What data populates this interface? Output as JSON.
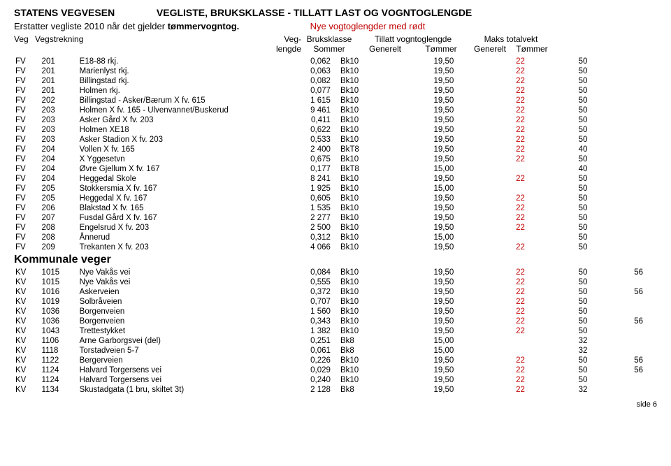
{
  "header": {
    "org": "STATENS VEGVESEN",
    "title": "VEGLISTE,  BRUKSKLASSE - TILLATT LAST OG VOGNTOGLENGDE",
    "replace_prefix": "Erstatter vegliste 2010 når det gjelder ",
    "replace_bold": "tømmervogntog.",
    "new_lengths": "Nye vogtoglengder med rødt"
  },
  "columns": {
    "r1": [
      "Veg",
      "Vegstrekning",
      "Veg-",
      "Bruksklasse",
      "Tillatt vogntoglengde",
      "Maks totalvekt"
    ],
    "r2": [
      "",
      "",
      "lengde",
      "Sommer",
      "Generelt",
      "Tømmer",
      "Generelt",
      "Tømmer"
    ]
  },
  "section": "Kommunale veger",
  "footer": "side 6",
  "rows_top": [
    {
      "veg": "FV",
      "num": "201",
      "name": "E18-88 rkj.",
      "len": "0,062",
      "bk": "Bk10",
      "gen": "19,50",
      "tom": "22",
      "mg": "50",
      "mt": ""
    },
    {
      "veg": "FV",
      "num": "201",
      "name": "Marienlyst rkj.",
      "len": "0,063",
      "bk": "Bk10",
      "gen": "19,50",
      "tom": "22",
      "mg": "50",
      "mt": ""
    },
    {
      "veg": "FV",
      "num": "201",
      "name": "Billingstad rkj.",
      "len": "0,082",
      "bk": "Bk10",
      "gen": "19,50",
      "tom": "22",
      "mg": "50",
      "mt": ""
    },
    {
      "veg": "FV",
      "num": "201",
      "name": "Holmen rkj.",
      "len": "0,077",
      "bk": "Bk10",
      "gen": "19,50",
      "tom": "22",
      "mg": "50",
      "mt": ""
    },
    {
      "veg": "FV",
      "num": "202",
      "name": "Billingstad - Asker/Bærum X fv. 615",
      "len": "1 615",
      "bk": "Bk10",
      "gen": "19,50",
      "tom": "22",
      "mg": "50",
      "mt": ""
    },
    {
      "veg": "FV",
      "num": "203",
      "name": "Holmen X fv. 165 - Ulvenvannet/Buskerud",
      "len": "9 461",
      "bk": "Bk10",
      "gen": "19,50",
      "tom": "22",
      "mg": "50",
      "mt": ""
    },
    {
      "veg": "FV",
      "num": "203",
      "name": "Asker Gård X fv. 203",
      "len": "0,411",
      "bk": "Bk10",
      "gen": "19,50",
      "tom": "22",
      "mg": "50",
      "mt": ""
    },
    {
      "veg": "FV",
      "num": "203",
      "name": "Holmen XE18",
      "len": "0,622",
      "bk": "Bk10",
      "gen": "19,50",
      "tom": "22",
      "mg": "50",
      "mt": ""
    },
    {
      "veg": "FV",
      "num": "203",
      "name": "Asker Stadion X fv. 203",
      "len": "0,533",
      "bk": "Bk10",
      "gen": "19,50",
      "tom": "22",
      "mg": "50",
      "mt": ""
    },
    {
      "veg": "FV",
      "num": "204",
      "name": "Vollen X fv. 165",
      "len": "2 400",
      "bk": "BkT8",
      "gen": "19,50",
      "tom": "22",
      "mg": "40",
      "mt": ""
    },
    {
      "veg": "FV",
      "num": "204",
      "name": "X Yggesetvn",
      "len": "0,675",
      "bk": "Bk10",
      "gen": "19,50",
      "tom": "22",
      "mg": "50",
      "mt": ""
    },
    {
      "veg": "FV",
      "num": "204",
      "name": "Øvre Gjellum  X fv. 167",
      "len": "0,177",
      "bk": "BkT8",
      "gen": "15,00",
      "tom": "",
      "mg": "40",
      "mt": ""
    },
    {
      "veg": "FV",
      "num": "204",
      "name": "Heggedal Skole",
      "len": "8 241",
      "bk": "Bk10",
      "gen": "19,50",
      "tom": "22",
      "mg": "50",
      "mt": ""
    },
    {
      "veg": "FV",
      "num": "205",
      "name": "Stokkersmia X fv. 167",
      "len": "1 925",
      "bk": "Bk10",
      "gen": "15,00",
      "tom": "",
      "mg": "50",
      "mt": ""
    },
    {
      "veg": "FV",
      "num": "205",
      "name": "Heggedal X fv. 167",
      "len": "0,605",
      "bk": "Bk10",
      "gen": "19,50",
      "tom": "22",
      "mg": "50",
      "mt": ""
    },
    {
      "veg": "FV",
      "num": "206",
      "name": "Blakstad X fv. 165",
      "len": "1 535",
      "bk": "Bk10",
      "gen": "19,50",
      "tom": "22",
      "mg": "50",
      "mt": ""
    },
    {
      "veg": "FV",
      "num": "207",
      "name": "Fusdal Gård X fv. 167",
      "len": "2 277",
      "bk": "Bk10",
      "gen": "19,50",
      "tom": "22",
      "mg": "50",
      "mt": ""
    },
    {
      "veg": "FV",
      "num": "208",
      "name": "Engelsrud X fv. 203",
      "len": "2 500",
      "bk": "Bk10",
      "gen": "19,50",
      "tom": "22",
      "mg": "50",
      "mt": ""
    },
    {
      "veg": "FV",
      "num": "208",
      "name": "Ånnerud",
      "len": "0,312",
      "bk": "Bk10",
      "gen": "15,00",
      "tom": "",
      "mg": "50",
      "mt": ""
    },
    {
      "veg": "FV",
      "num": "209",
      "name": "Trekanten X fv. 203",
      "len": "4 066",
      "bk": "Bk10",
      "gen": "19,50",
      "tom": "22",
      "mg": "50",
      "mt": ""
    }
  ],
  "rows_bottom": [
    {
      "veg": "KV",
      "num": "1015",
      "name": "Nye Vakås vei",
      "len": "0,084",
      "bk": "Bk10",
      "gen": "19,50",
      "tom": "22",
      "mg": "50",
      "mt": "56"
    },
    {
      "veg": "KV",
      "num": "1015",
      "name": "Nye Vakås vei",
      "len": "0,555",
      "bk": "Bk10",
      "gen": "19,50",
      "tom": "22",
      "mg": "50",
      "mt": ""
    },
    {
      "veg": "KV",
      "num": "1016",
      "name": "Askerveien",
      "len": "0,372",
      "bk": "Bk10",
      "gen": "19,50",
      "tom": "22",
      "mg": "50",
      "mt": "56"
    },
    {
      "veg": "KV",
      "num": "1019",
      "name": "Solbråveien",
      "len": "0,707",
      "bk": "Bk10",
      "gen": "19,50",
      "tom": "22",
      "mg": "50",
      "mt": ""
    },
    {
      "veg": "KV",
      "num": "1036",
      "name": "Borgenveien",
      "len": "1 560",
      "bk": "Bk10",
      "gen": "19,50",
      "tom": "22",
      "mg": "50",
      "mt": ""
    },
    {
      "veg": "KV",
      "num": "1036",
      "name": "Borgenveien",
      "len": "0,343",
      "bk": "Bk10",
      "gen": "19,50",
      "tom": "22",
      "mg": "50",
      "mt": "56"
    },
    {
      "veg": "KV",
      "num": "1043",
      "name": "Trettestykket",
      "len": "1 382",
      "bk": "Bk10",
      "gen": "19,50",
      "tom": "22",
      "mg": "50",
      "mt": ""
    },
    {
      "veg": "KV",
      "num": "1106",
      "name": "Arne Garborgsvei (del)",
      "len": "0,251",
      "bk": "Bk8",
      "gen": "15,00",
      "tom": "",
      "mg": "32",
      "mt": ""
    },
    {
      "veg": "KV",
      "num": "1118",
      "name": "Torstadveien 5-7",
      "len": "0,061",
      "bk": "Bk8",
      "gen": "15,00",
      "tom": "",
      "mg": "32",
      "mt": ""
    },
    {
      "veg": "KV",
      "num": "1122",
      "name": "Bergerveien",
      "len": "0,226",
      "bk": "Bk10",
      "gen": "19,50",
      "tom": "22",
      "mg": "50",
      "mt": "56"
    },
    {
      "veg": "KV",
      "num": "1124",
      "name": "Halvard Torgersens vei",
      "len": "0,029",
      "bk": "Bk10",
      "gen": "19,50",
      "tom": "22",
      "mg": "50",
      "mt": "56"
    },
    {
      "veg": "KV",
      "num": "1124",
      "name": "Halvard Torgersens vei",
      "len": "0,240",
      "bk": "Bk10",
      "gen": "19,50",
      "tom": "22",
      "mg": "50",
      "mt": ""
    },
    {
      "veg": "KV",
      "num": "1134",
      "name": "Skustadgata (1 bru, skiltet 3t)",
      "len": "2 128",
      "bk": "Bk8",
      "gen": "19,50",
      "tom": "22",
      "mg": "32",
      "mt": ""
    }
  ]
}
